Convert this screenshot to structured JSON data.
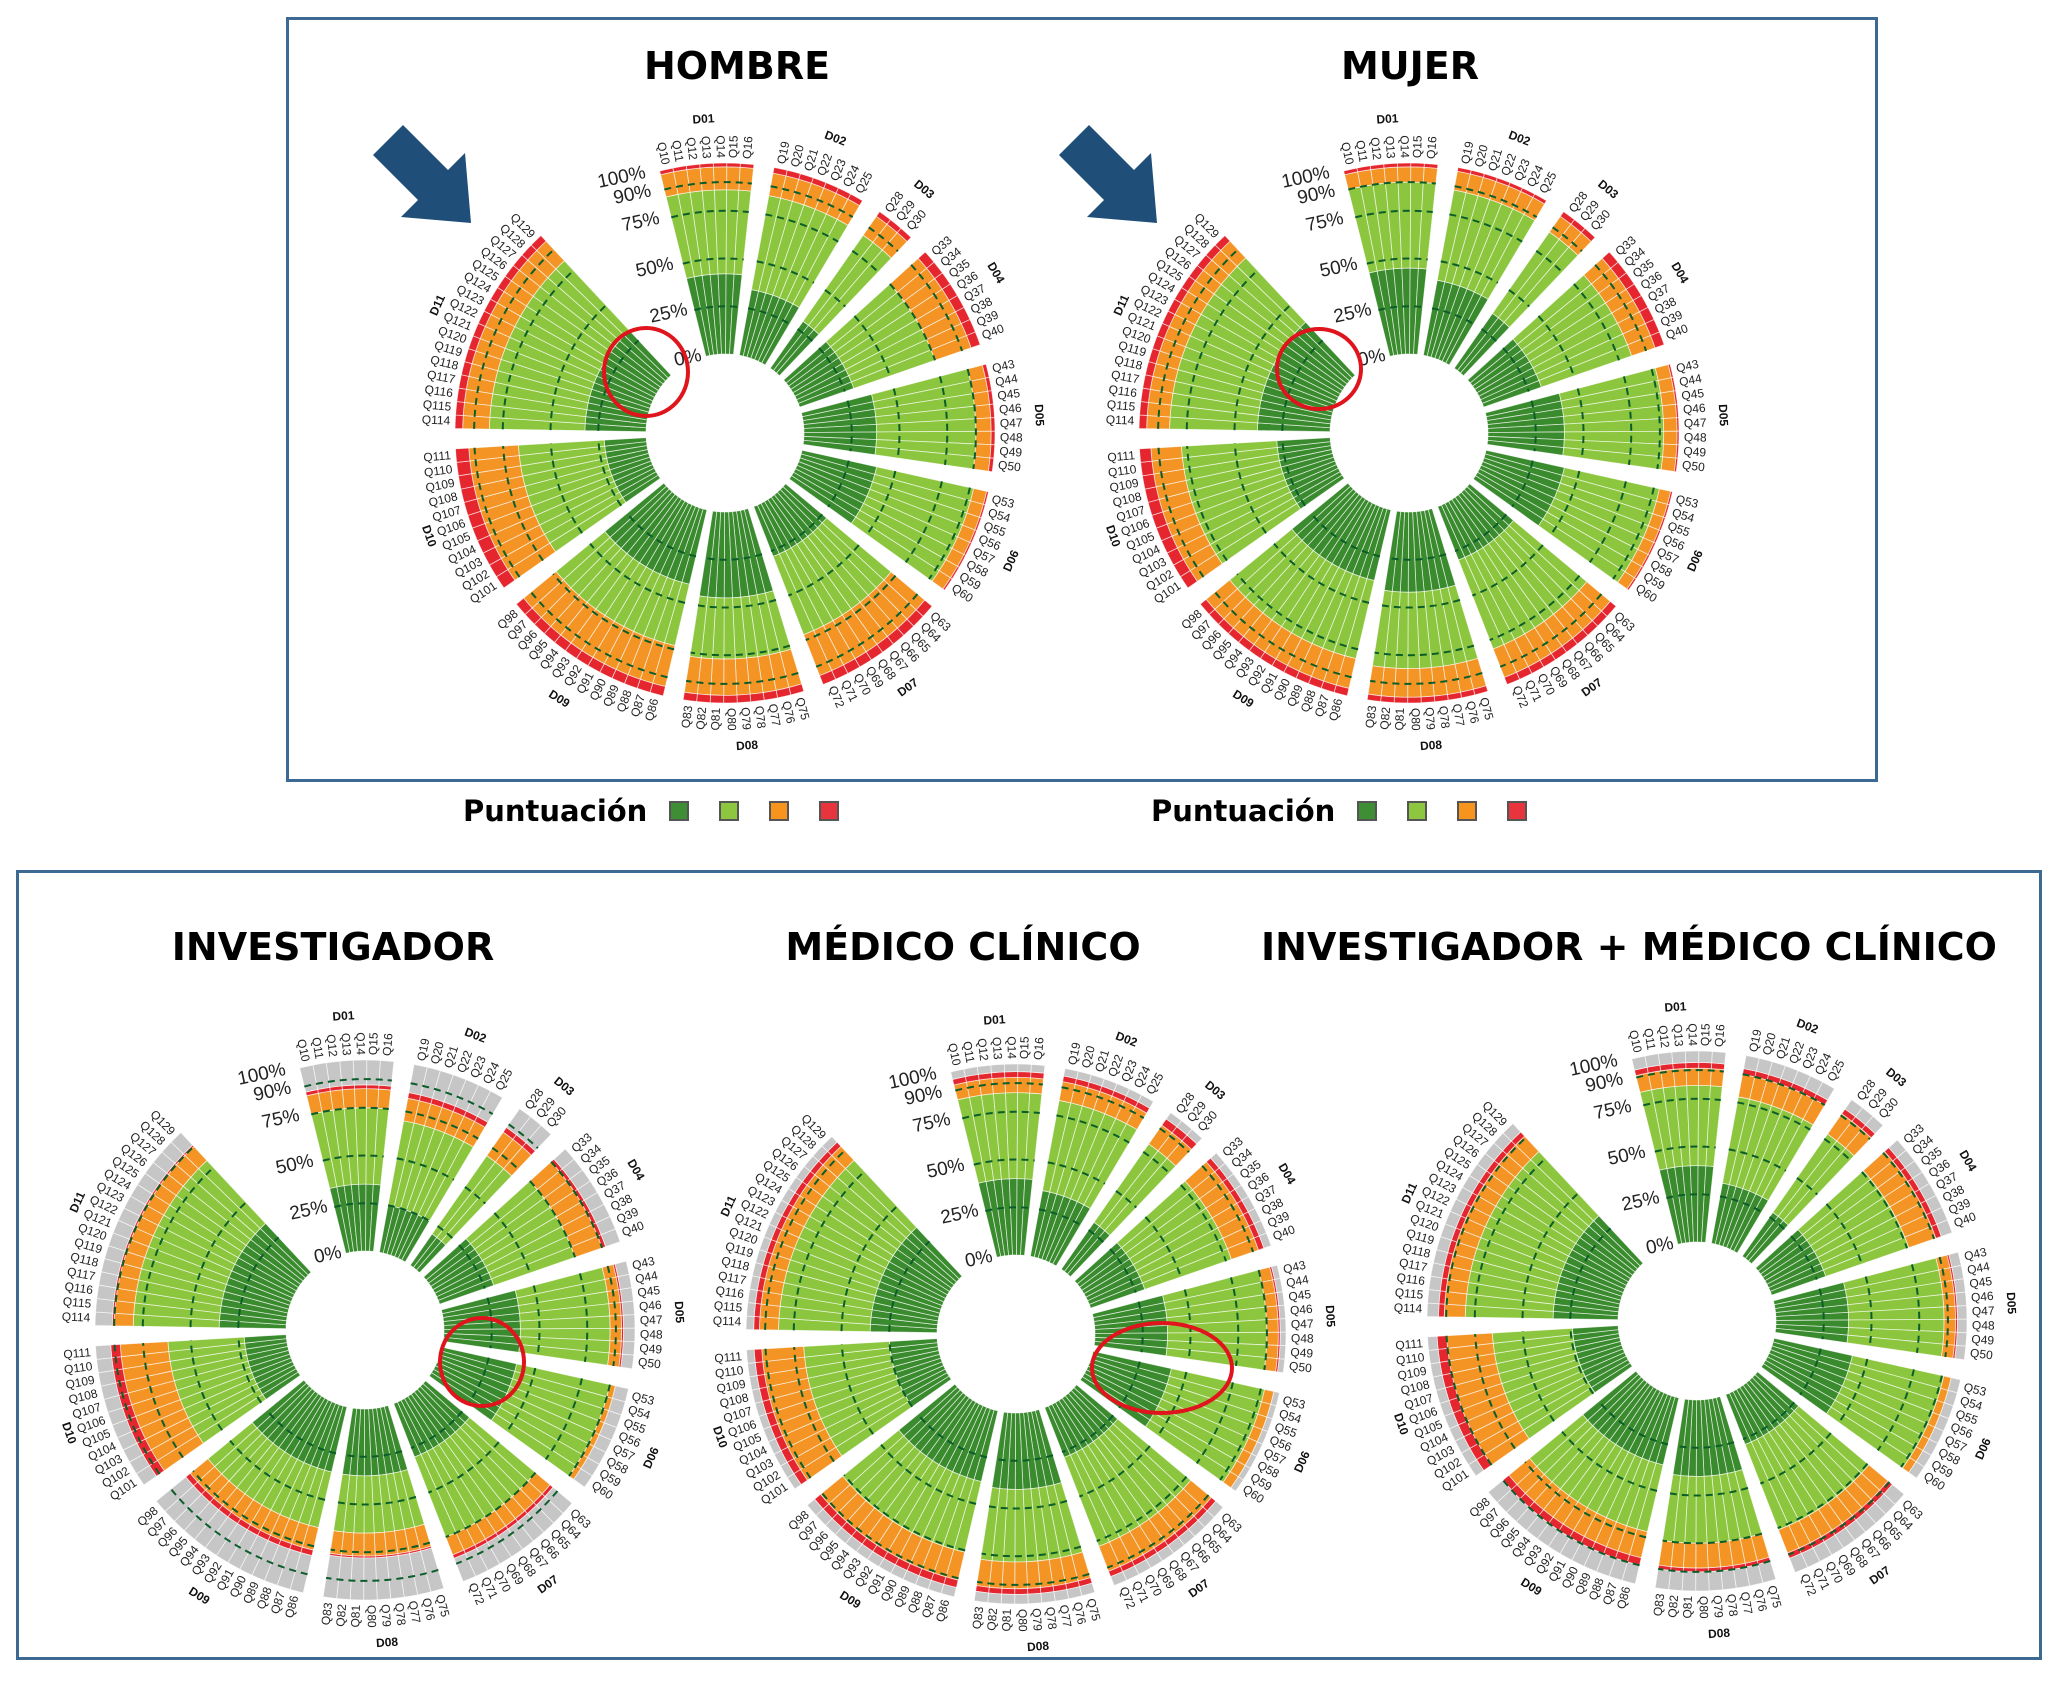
{
  "top_panel": {
    "legends": [
      {
        "label": "Puntuación"
      },
      {
        "label": "Puntuación"
      }
    ]
  },
  "legend_colors": [
    "#3e8e33",
    "#8dc63f",
    "#f7941d",
    "#e8343c"
  ],
  "segment_colors": {
    "dark_green": "#3a8a2e",
    "light_green": "#8cc63f",
    "orange": "#f39425",
    "red": "#e5262e",
    "grey": "#c6c6c6"
  },
  "accent_colors": {
    "frame": "#3d6a92",
    "arrow": "#1f4e79",
    "highlight_circle": "#e0141c"
  },
  "chart_data": {
    "type": "radial stacked bar",
    "scale_labels": [
      "100%",
      "90%",
      "75%",
      "50%",
      "25%",
      "0%"
    ],
    "scale_values": [
      100,
      90,
      75,
      50,
      25,
      0
    ],
    "segment_order": [
      "dark_green",
      "light_green",
      "orange",
      "red",
      "grey"
    ],
    "domains": [
      {
        "id": "D01",
        "questions": [
          "Q10",
          "Q11",
          "Q12",
          "Q13",
          "Q14",
          "Q15",
          "Q16"
        ]
      },
      {
        "id": "D02",
        "questions": [
          "Q19",
          "Q20",
          "Q21",
          "Q22",
          "Q23",
          "Q24",
          "Q25"
        ]
      },
      {
        "id": "D03",
        "questions": [
          "Q28",
          "Q29",
          "Q30"
        ]
      },
      {
        "id": "D04",
        "questions": [
          "Q33",
          "Q34",
          "Q35",
          "Q36",
          "Q37",
          "Q38",
          "Q39",
          "Q40"
        ]
      },
      {
        "id": "D05",
        "questions": [
          "Q43",
          "Q44",
          "Q45",
          "Q46",
          "Q47",
          "Q48",
          "Q49",
          "Q50"
        ]
      },
      {
        "id": "D06",
        "questions": [
          "Q53",
          "Q54",
          "Q55",
          "Q56",
          "Q57",
          "Q58",
          "Q59",
          "Q60"
        ]
      },
      {
        "id": "D07",
        "questions": [
          "Q63",
          "Q64",
          "Q65",
          "Q66",
          "Q67",
          "Q68",
          "Q69",
          "Q70",
          "Q71",
          "Q72"
        ]
      },
      {
        "id": "D08",
        "questions": [
          "Q75",
          "Q76",
          "Q77",
          "Q78",
          "Q79",
          "Q80",
          "Q81",
          "Q82",
          "Q83"
        ]
      },
      {
        "id": "D09",
        "questions": [
          "Q86",
          "Q87",
          "Q88",
          "Q89",
          "Q90",
          "Q91",
          "Q92",
          "Q93",
          "Q94",
          "Q95",
          "Q96",
          "Q97",
          "Q98"
        ]
      },
      {
        "id": "D10",
        "questions": [
          "Q101",
          "Q102",
          "Q103",
          "Q104",
          "Q105",
          "Q106",
          "Q107",
          "Q108",
          "Q109",
          "Q110",
          "Q111"
        ]
      },
      {
        "id": "D11",
        "questions": [
          "Q114",
          "Q115",
          "Q116",
          "Q117",
          "Q118",
          "Q119",
          "Q120",
          "Q121",
          "Q122",
          "Q123",
          "Q124",
          "Q125",
          "Q126",
          "Q127",
          "Q128",
          "Q129"
        ]
      }
    ],
    "charts": [
      {
        "title": "HOMBRE",
        "values_by_domain": [
          [
            42,
            44,
            12,
            2,
            0
          ],
          [
            35,
            50,
            12,
            3,
            0
          ],
          [
            30,
            55,
            12,
            3,
            0
          ],
          [
            30,
            45,
            20,
            5,
            0
          ],
          [
            38,
            52,
            8,
            2,
            0
          ],
          [
            40,
            52,
            7,
            1,
            0
          ],
          [
            28,
            44,
            23,
            5,
            0
          ],
          [
            45,
            32,
            19,
            4,
            0
          ],
          [
            40,
            33,
            22,
            5,
            0
          ],
          [
            22,
            45,
            26,
            7,
            0
          ],
          [
            32,
            50,
            14,
            4,
            0
          ]
        ]
      },
      {
        "title": "MUJER",
        "values_by_domain": [
          [
            45,
            45,
            8,
            2,
            0
          ],
          [
            40,
            48,
            10,
            2,
            0
          ],
          [
            35,
            52,
            10,
            3,
            0
          ],
          [
            32,
            50,
            13,
            5,
            0
          ],
          [
            40,
            52,
            7,
            1,
            0
          ],
          [
            42,
            51,
            6,
            1,
            0
          ],
          [
            30,
            50,
            16,
            4,
            0
          ],
          [
            42,
            40,
            15,
            3,
            0
          ],
          [
            38,
            42,
            16,
            4,
            0
          ],
          [
            28,
            50,
            16,
            6,
            0
          ],
          [
            38,
            46,
            12,
            4,
            0
          ]
        ]
      },
      {
        "title": "INVESTIGADOR",
        "values_by_domain": [
          [
            35,
            40,
            10,
            2,
            13
          ],
          [
            25,
            45,
            12,
            3,
            15
          ],
          [
            20,
            50,
            15,
            3,
            12
          ],
          [
            30,
            45,
            15,
            2,
            8
          ],
          [
            40,
            47,
            6,
            1,
            6
          ],
          [
            40,
            50,
            3,
            0,
            7
          ],
          [
            30,
            45,
            10,
            2,
            13
          ],
          [
            35,
            30,
            12,
            1,
            22
          ],
          [
            35,
            30,
            12,
            3,
            20
          ],
          [
            22,
            40,
            25,
            5,
            8
          ],
          [
            35,
            45,
            10,
            1,
            9
          ]
        ]
      },
      {
        "title": "MÉDICO CLÍNICO",
        "values_by_domain": [
          [
            40,
            45,
            8,
            3,
            4
          ],
          [
            35,
            48,
            10,
            3,
            4
          ],
          [
            30,
            50,
            12,
            4,
            4
          ],
          [
            30,
            48,
            15,
            3,
            4
          ],
          [
            38,
            52,
            6,
            1,
            3
          ],
          [
            42,
            50,
            5,
            0,
            3
          ],
          [
            28,
            50,
            14,
            3,
            5
          ],
          [
            40,
            38,
            14,
            3,
            5
          ],
          [
            38,
            38,
            15,
            4,
            5
          ],
          [
            25,
            45,
            22,
            4,
            4
          ],
          [
            35,
            48,
            10,
            3,
            4
          ]
        ]
      },
      {
        "title": "INVESTIGADOR + MÉDICO CLÍNICO",
        "values_by_domain": [
          [
            40,
            42,
            9,
            3,
            6
          ],
          [
            32,
            46,
            12,
            3,
            7
          ],
          [
            28,
            50,
            13,
            3,
            6
          ],
          [
            30,
            46,
            15,
            3,
            6
          ],
          [
            38,
            50,
            6,
            1,
            5
          ],
          [
            42,
            49,
            4,
            0,
            5
          ],
          [
            28,
            48,
            13,
            3,
            8
          ],
          [
            40,
            35,
            13,
            2,
            10
          ],
          [
            36,
            36,
            14,
            4,
            10
          ],
          [
            24,
            42,
            24,
            5,
            5
          ],
          [
            34,
            46,
            11,
            3,
            6
          ]
        ]
      }
    ]
  }
}
